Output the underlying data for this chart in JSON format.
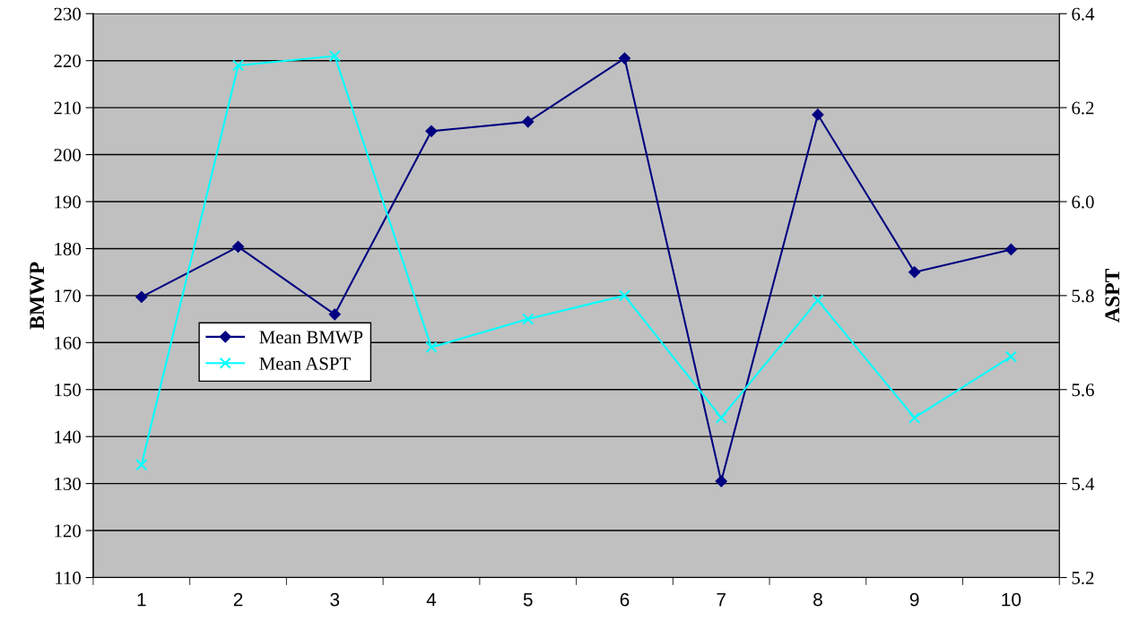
{
  "chart_data": {
    "type": "line",
    "ylabel": "BMWP",
    "y2label": "ASPT",
    "categories": [
      "1",
      "2",
      "3",
      "4",
      "5",
      "6",
      "7",
      "8",
      "9",
      "10"
    ],
    "series": [
      {
        "name": "Mean BMWP",
        "color": "#000080",
        "marker": "diamond",
        "values": [
          169.7,
          180.4,
          166,
          205,
          207,
          220.5,
          130.5,
          208.5,
          175,
          179.8
        ]
      },
      {
        "name": "Mean ASPT",
        "color": "#00ffff",
        "marker": "cross",
        "axis": "y2",
        "values": [
          5.44,
          6.29,
          6.31,
          5.69,
          5.75,
          5.8,
          5.54,
          5.79,
          5.54,
          5.67
        ]
      }
    ],
    "ylim": [
      110,
      230
    ],
    "yticks": [
      110,
      120,
      130,
      140,
      150,
      160,
      170,
      180,
      190,
      200,
      210,
      220,
      230
    ],
    "y2lim": [
      5.2,
      6.4
    ],
    "y2ticks": [
      {
        "value": 5.2,
        "label": "5.2"
      },
      {
        "value": 5.4,
        "label": "5.4"
      },
      {
        "value": 5.6,
        "label": "5.6"
      },
      {
        "value": 5.8,
        "label": "5.8"
      },
      {
        "value": 6.0,
        "label": "6.0"
      },
      {
        "value": 6.2,
        "label": "6.2"
      },
      {
        "value": 6.4,
        "label": "6.4"
      }
    ],
    "grid": "y",
    "legend": "left"
  }
}
